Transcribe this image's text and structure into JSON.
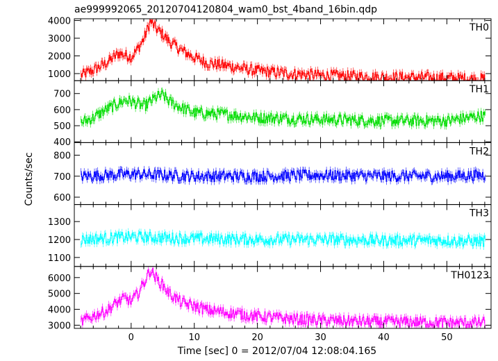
{
  "page": {
    "title": "ae999992065_20120704120804_wam0_bst_4band_16bin.qdp"
  },
  "chart_data": {
    "type": "line",
    "title": "ae999992065_20120704120804_wam0_bst_4band_16bin.qdp",
    "xlabel": "Time [sec] 0 = 2012/07/04 12:08:04.165",
    "ylabel": "Counts/sec",
    "xlim": [
      -9,
      57
    ],
    "x_ticks": [
      0,
      10,
      20,
      30,
      40,
      50
    ],
    "x_tick_labels": [
      "0",
      "10",
      "20",
      "30",
      "40",
      "50"
    ],
    "grid": false,
    "panels": [
      {
        "name": "TH0",
        "color": "#ff0000",
        "ylim": [
          600,
          4100
        ],
        "y_ticks": [
          1000,
          2000,
          3000,
          4000
        ],
        "y_tick_labels": [
          "1000",
          "2000",
          "3000",
          "4000"
        ],
        "x": [
          -8,
          -6,
          -4,
          -2,
          -1,
          0,
          1,
          2,
          3,
          4,
          5,
          6,
          8,
          10,
          12,
          15,
          20,
          25,
          30,
          35,
          40,
          45,
          50,
          55
        ],
        "y": [
          900,
          1200,
          1600,
          2150,
          2050,
          1950,
          2400,
          3000,
          3950,
          3500,
          3200,
          2800,
          2300,
          1900,
          1600,
          1450,
          1150,
          1000,
          900,
          850,
          800,
          780,
          750,
          700
        ]
      },
      {
        "name": "TH1",
        "color": "#00dd00",
        "ylim": [
          395,
          780
        ],
        "y_ticks": [
          400,
          500,
          600,
          700
        ],
        "y_tick_labels": [
          "400",
          "500",
          "600",
          "700"
        ],
        "x": [
          -8,
          -6,
          -4,
          -2,
          -1,
          0,
          2,
          4,
          5,
          6,
          8,
          10,
          15,
          20,
          25,
          30,
          35,
          40,
          45,
          50,
          55
        ],
        "y": [
          520,
          550,
          600,
          640,
          660,
          650,
          620,
          680,
          690,
          650,
          610,
          580,
          570,
          550,
          545,
          540,
          535,
          530,
          530,
          530,
          560
        ]
      },
      {
        "name": "TH2",
        "color": "#0000ff",
        "ylim": [
          565,
          860
        ],
        "y_ticks": [
          600,
          700,
          800
        ],
        "y_tick_labels": [
          "600",
          "700",
          "800"
        ],
        "x": [
          -8,
          0,
          10,
          20,
          30,
          40,
          50,
          55
        ],
        "y": [
          700,
          710,
          700,
          700,
          705,
          700,
          700,
          705
        ]
      },
      {
        "name": "TH3",
        "color": "#00ffff",
        "ylim": [
          1050,
          1395
        ],
        "y_ticks": [
          1100,
          1200,
          1300
        ],
        "y_tick_labels": [
          "1100",
          "1200",
          "1300"
        ],
        "x": [
          -8,
          0,
          10,
          20,
          30,
          40,
          50,
          55
        ],
        "y": [
          1200,
          1215,
          1205,
          1200,
          1200,
          1195,
          1195,
          1190
        ]
      },
      {
        "name": "TH0123",
        "color": "#ff00ff",
        "ylim": [
          2800,
          6700
        ],
        "y_ticks": [
          3000,
          4000,
          5000,
          6000
        ],
        "y_tick_labels": [
          "3000",
          "4000",
          "5000",
          "6000"
        ],
        "x": [
          -8,
          -6,
          -4,
          -2,
          -1,
          0,
          1,
          2,
          3,
          4,
          5,
          6,
          8,
          10,
          12,
          15,
          20,
          25,
          30,
          35,
          40,
          45,
          50,
          55
        ],
        "y": [
          3200,
          3600,
          3900,
          4500,
          4700,
          4500,
          5000,
          5700,
          6500,
          5900,
          5500,
          5000,
          4400,
          4200,
          3950,
          3800,
          3550,
          3400,
          3300,
          3250,
          3200,
          3200,
          3150,
          3150
        ]
      }
    ]
  }
}
